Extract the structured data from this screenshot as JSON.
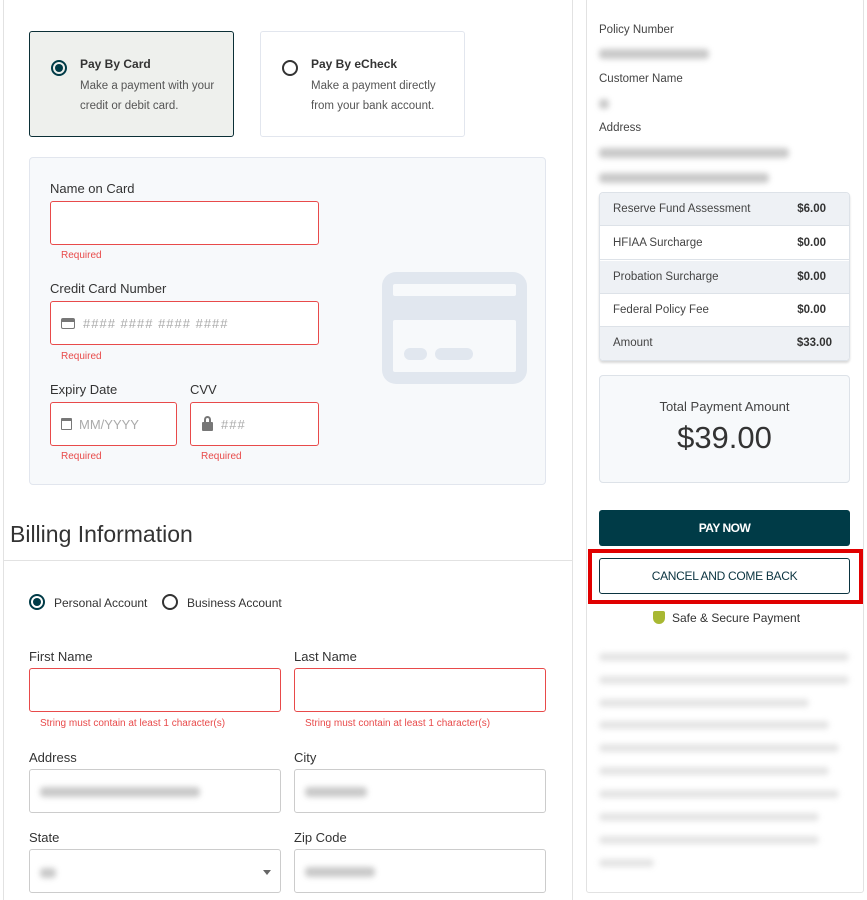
{
  "payment_methods": [
    {
      "title": "Pay By Card",
      "desc": "Make a payment with your credit or debit card.",
      "selected": true
    },
    {
      "title": "Pay By eCheck",
      "desc": "Make a payment directly from your bank account.",
      "selected": false
    }
  ],
  "card_form": {
    "name_label": "Name on Card",
    "name_error": "Required",
    "number_label": "Credit Card Number",
    "number_placeholder": "#### #### #### ####",
    "number_error": "Required",
    "expiry_label": "Expiry Date",
    "expiry_placeholder": "MM/YYYY",
    "expiry_error": "Required",
    "cvv_label": "CVV",
    "cvv_placeholder": "###",
    "cvv_error": "Required"
  },
  "billing": {
    "title": "Billing Information",
    "account_types": [
      {
        "label": "Personal Account",
        "selected": true
      },
      {
        "label": "Business Account",
        "selected": false
      }
    ],
    "first_name_label": "First Name",
    "first_name_error": "String must contain at least 1 character(s)",
    "last_name_label": "Last Name",
    "last_name_error": "String must contain at least 1 character(s)",
    "address_label": "Address",
    "city_label": "City",
    "state_label": "State",
    "zip_label": "Zip Code"
  },
  "summary": {
    "policy_label": "Policy Number",
    "customer_label": "Customer Name",
    "address_label": "Address",
    "fees": [
      {
        "label": "Reserve Fund Assessment",
        "value": "$6.00"
      },
      {
        "label": "HFIAA Surcharge",
        "value": "$0.00"
      },
      {
        "label": "Probation Surcharge",
        "value": "$0.00"
      },
      {
        "label": "Federal Policy Fee",
        "value": "$0.00"
      },
      {
        "label": "Amount",
        "value": "$33.00"
      }
    ],
    "total_label": "Total Payment Amount",
    "total_value": "$39.00",
    "pay_button": "PAY NOW",
    "cancel_button": "CANCEL AND COME BACK",
    "secure_text": "Safe & Secure Payment"
  },
  "colors": {
    "primary": "#003b47",
    "error": "#e84a4a",
    "highlight": "#e00000",
    "shield": "#a8b832"
  }
}
